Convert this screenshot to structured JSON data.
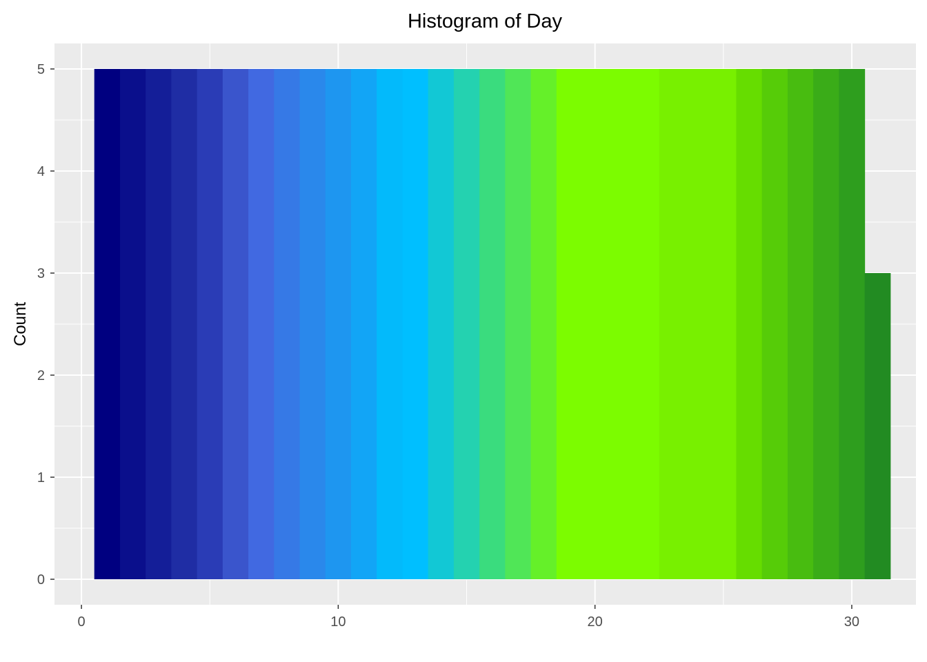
{
  "chart_data": {
    "type": "bar",
    "title": "Histogram of Day",
    "xlabel": "",
    "ylabel": "Count",
    "xlim": [
      -1.05,
      32.5
    ],
    "ylim": [
      -0.25,
      5.25
    ],
    "x_ticks": [
      0,
      10,
      20,
      30
    ],
    "y_ticks": [
      0,
      1,
      2,
      3,
      4,
      5
    ],
    "x_tick_labels": [
      "0",
      "10",
      "20",
      "30"
    ],
    "y_tick_labels": [
      "0",
      "1",
      "2",
      "3",
      "4",
      "5"
    ],
    "grid": true,
    "legend": "none",
    "background_color": "#EBEBEB",
    "grid_color": "#FFFFFF",
    "bin_width": 1,
    "bins": [
      {
        "x": 1,
        "count": 5,
        "color": "#000080"
      },
      {
        "x": 2,
        "count": 5,
        "color": "#0A0F8C"
      },
      {
        "x": 3,
        "count": 5,
        "color": "#141E98"
      },
      {
        "x": 4,
        "count": 5,
        "color": "#1F2DA4"
      },
      {
        "x": 5,
        "count": 5,
        "color": "#2A3CB6"
      },
      {
        "x": 6,
        "count": 5,
        "color": "#3A55CC"
      },
      {
        "x": 7,
        "count": 5,
        "color": "#4169E1"
      },
      {
        "x": 8,
        "count": 5,
        "color": "#3679E6"
      },
      {
        "x": 9,
        "count": 5,
        "color": "#2A88EB"
      },
      {
        "x": 10,
        "count": 5,
        "color": "#1E96F0"
      },
      {
        "x": 11,
        "count": 5,
        "color": "#12A5F6"
      },
      {
        "x": 12,
        "count": 5,
        "color": "#03BAFB"
      },
      {
        "x": 13,
        "count": 5,
        "color": "#00BFFF"
      },
      {
        "x": 14,
        "count": 5,
        "color": "#12C8D5"
      },
      {
        "x": 15,
        "count": 5,
        "color": "#24D2B0"
      },
      {
        "x": 16,
        "count": 5,
        "color": "#3ADC7E"
      },
      {
        "x": 17,
        "count": 5,
        "color": "#50E657"
      },
      {
        "x": 18,
        "count": 5,
        "color": "#65F029"
      },
      {
        "x": 19,
        "count": 5,
        "color": "#7CFC00"
      },
      {
        "x": 20,
        "count": 5,
        "color": "#7CFC00"
      },
      {
        "x": 21,
        "count": 5,
        "color": "#7CFC00"
      },
      {
        "x": 22,
        "count": 5,
        "color": "#7CFC00"
      },
      {
        "x": 23,
        "count": 5,
        "color": "#78F000"
      },
      {
        "x": 24,
        "count": 5,
        "color": "#78F000"
      },
      {
        "x": 25,
        "count": 5,
        "color": "#78F000"
      },
      {
        "x": 26,
        "count": 5,
        "color": "#66DD00"
      },
      {
        "x": 27,
        "count": 5,
        "color": "#56CC08"
      },
      {
        "x": 28,
        "count": 5,
        "color": "#48BC10"
      },
      {
        "x": 29,
        "count": 5,
        "color": "#3AAC18"
      },
      {
        "x": 30,
        "count": 5,
        "color": "#2E9E1E"
      },
      {
        "x": 31,
        "count": 3,
        "color": "#228B22"
      }
    ]
  }
}
